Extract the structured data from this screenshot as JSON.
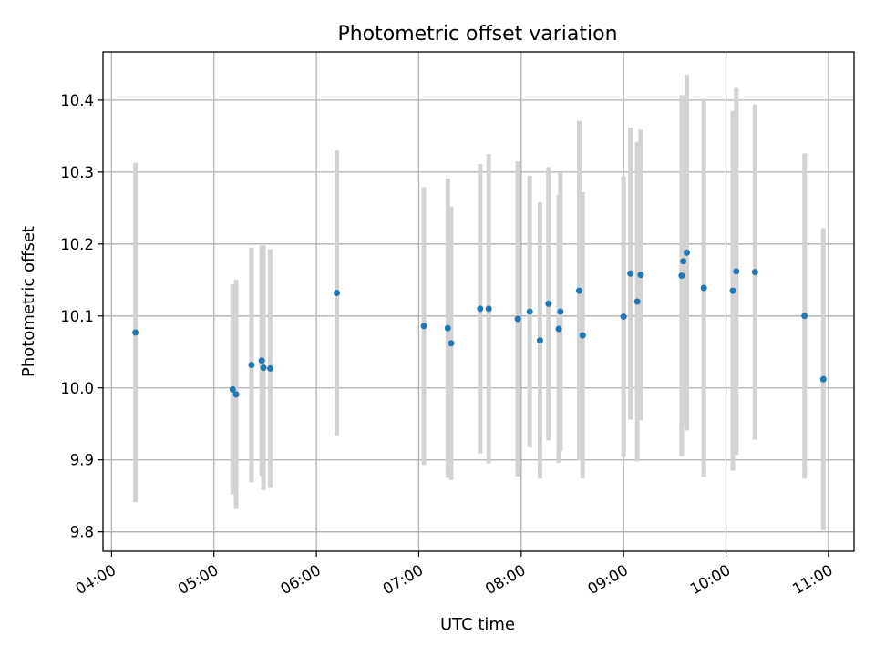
{
  "chart_data": {
    "type": "scatter",
    "title": "Photometric offset variation",
    "xlabel": "UTC time",
    "ylabel": "Photometric offset",
    "xlim": [
      "03:55",
      "11:15"
    ],
    "ylim": [
      9.773,
      10.467
    ],
    "x_ticks": [
      "04:00",
      "05:00",
      "06:00",
      "07:00",
      "08:00",
      "09:00",
      "10:00",
      "11:00"
    ],
    "y_ticks": [
      9.8,
      9.9,
      10.0,
      10.1,
      10.2,
      10.3,
      10.4
    ],
    "grid": true,
    "colors": {
      "point": "#1f77b4",
      "error_bar": "#d3d3d3"
    },
    "points": [
      {
        "t": "04:14",
        "y": 10.077,
        "err": 0.236
      },
      {
        "t": "05:11",
        "y": 9.998,
        "err": 0.146
      },
      {
        "t": "05:13",
        "y": 9.991,
        "err": 0.159
      },
      {
        "t": "05:22",
        "y": 10.032,
        "err": 0.163
      },
      {
        "t": "05:28",
        "y": 10.038,
        "err": 0.16
      },
      {
        "t": "05:29",
        "y": 10.028,
        "err": 0.17
      },
      {
        "t": "05:33",
        "y": 10.027,
        "err": 0.166
      },
      {
        "t": "06:12",
        "y": 10.132,
        "err": 0.198
      },
      {
        "t": "07:03",
        "y": 10.086,
        "err": 0.193
      },
      {
        "t": "07:17",
        "y": 10.083,
        "err": 0.208
      },
      {
        "t": "07:19",
        "y": 10.062,
        "err": 0.19
      },
      {
        "t": "07:36",
        "y": 10.11,
        "err": 0.201
      },
      {
        "t": "07:41",
        "y": 10.11,
        "err": 0.215
      },
      {
        "t": "07:58",
        "y": 10.096,
        "err": 0.219
      },
      {
        "t": "08:05",
        "y": 10.106,
        "err": 0.189
      },
      {
        "t": "08:11",
        "y": 10.066,
        "err": 0.192
      },
      {
        "t": "08:16",
        "y": 10.117,
        "err": 0.19
      },
      {
        "t": "08:22",
        "y": 10.082,
        "err": 0.186
      },
      {
        "t": "08:23",
        "y": 10.106,
        "err": 0.194
      },
      {
        "t": "08:34",
        "y": 10.135,
        "err": 0.236
      },
      {
        "t": "08:36",
        "y": 10.073,
        "err": 0.199
      },
      {
        "t": "09:00",
        "y": 10.099,
        "err": 0.195
      },
      {
        "t": "09:04",
        "y": 10.159,
        "err": 0.203
      },
      {
        "t": "09:08",
        "y": 10.12,
        "err": 0.222
      },
      {
        "t": "09:10",
        "y": 10.157,
        "err": 0.202
      },
      {
        "t": "09:34",
        "y": 10.156,
        "err": 0.251
      },
      {
        "t": "09:35",
        "y": 10.176,
        "err": 0.23
      },
      {
        "t": "09:37",
        "y": 10.188,
        "err": 0.247
      },
      {
        "t": "09:47",
        "y": 10.139,
        "err": 0.263
      },
      {
        "t": "10:04",
        "y": 10.135,
        "err": 0.25
      },
      {
        "t": "10:06",
        "y": 10.162,
        "err": 0.255
      },
      {
        "t": "10:17",
        "y": 10.161,
        "err": 0.233
      },
      {
        "t": "10:46",
        "y": 10.1,
        "err": 0.226
      },
      {
        "t": "10:57",
        "y": 10.012,
        "err": 0.21
      }
    ]
  }
}
